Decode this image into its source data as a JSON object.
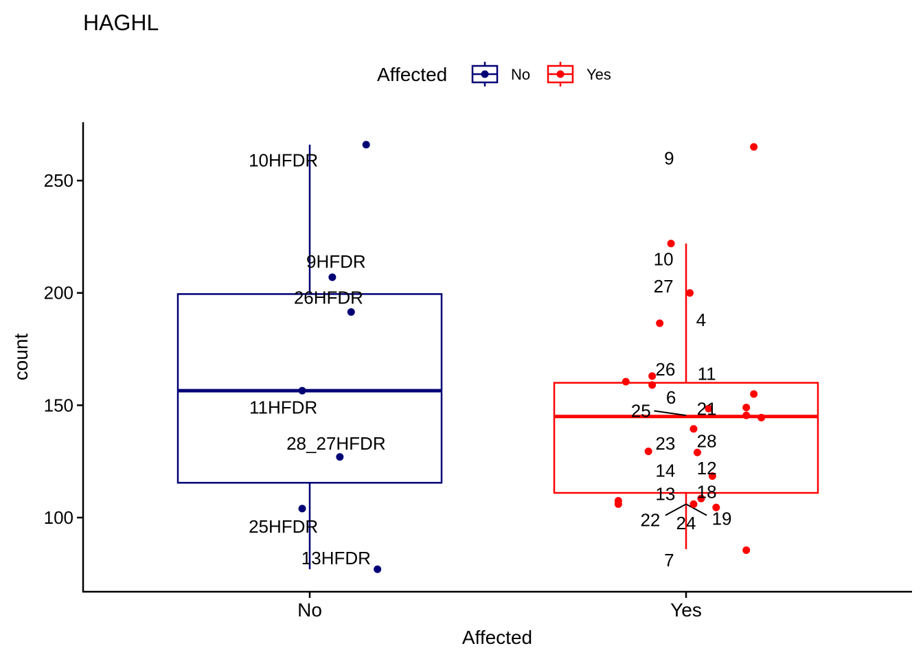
{
  "chart_data": {
    "type": "box",
    "title": "HAGHL",
    "xlabel": "Affected",
    "ylabel": "count",
    "categories": [
      "No",
      "Yes"
    ],
    "ylim": [
      67,
      276
    ],
    "yticks": [
      100,
      150,
      200,
      250
    ],
    "legend": {
      "title": "Affected",
      "position": "top",
      "entries": [
        {
          "name": "No",
          "color": "#000075"
        },
        {
          "name": "Yes",
          "color": "#ff0000"
        }
      ]
    },
    "boxes": [
      {
        "category": "No",
        "color": "#000075",
        "whisker_low": 77,
        "q1": 115.5,
        "median": 156.5,
        "q3": 199.5,
        "whisker_high": 266
      },
      {
        "category": "Yes",
        "color": "#ff0000",
        "whisker_low": 86,
        "q1": 111,
        "median": 145,
        "q3": 160,
        "whisker_high": 222
      }
    ],
    "points": [
      {
        "category": "No",
        "y": 266,
        "jitter": 0.15
      },
      {
        "category": "No",
        "y": 207,
        "jitter": 0.06
      },
      {
        "category": "No",
        "y": 191.5,
        "jitter": 0.11
      },
      {
        "category": "No",
        "y": 156.5,
        "jitter": -0.02
      },
      {
        "category": "No",
        "y": 127,
        "jitter": 0.08
      },
      {
        "category": "No",
        "y": 104,
        "jitter": -0.02
      },
      {
        "category": "No",
        "y": 77,
        "jitter": 0.18
      },
      {
        "category": "Yes",
        "y": 265,
        "jitter": 0.18
      },
      {
        "category": "Yes",
        "y": 222,
        "jitter": -0.04
      },
      {
        "category": "Yes",
        "y": 200,
        "jitter": 0.01
      },
      {
        "category": "Yes",
        "y": 186.5,
        "jitter": -0.07
      },
      {
        "category": "Yes",
        "y": 163,
        "jitter": -0.09
      },
      {
        "category": "Yes",
        "y": 160.5,
        "jitter": -0.16
      },
      {
        "category": "Yes",
        "y": 159,
        "jitter": -0.09
      },
      {
        "category": "Yes",
        "y": 155,
        "jitter": 0.18
      },
      {
        "category": "Yes",
        "y": 149,
        "jitter": 0.16
      },
      {
        "category": "Yes",
        "y": 148.5,
        "jitter": 0.06
      },
      {
        "category": "Yes",
        "y": 145.5,
        "jitter": 0.16
      },
      {
        "category": "Yes",
        "y": 144.5,
        "jitter": 0.2
      },
      {
        "category": "Yes",
        "y": 139.5,
        "jitter": 0.02
      },
      {
        "category": "Yes",
        "y": 129.5,
        "jitter": -0.1
      },
      {
        "category": "Yes",
        "y": 129,
        "jitter": 0.03
      },
      {
        "category": "Yes",
        "y": 118.5,
        "jitter": 0.07
      },
      {
        "category": "Yes",
        "y": 108.5,
        "jitter": 0.04
      },
      {
        "category": "Yes",
        "y": 107.5,
        "jitter": -0.18
      },
      {
        "category": "Yes",
        "y": 106,
        "jitter": -0.18
      },
      {
        "category": "Yes",
        "y": 106,
        "jitter": 0.02
      },
      {
        "category": "Yes",
        "y": 104.5,
        "jitter": 0.08
      },
      {
        "category": "Yes",
        "y": 85.5,
        "jitter": 0.16
      }
    ],
    "labels": [
      {
        "text": "10HFDR",
        "category": "No",
        "y": 259,
        "dx": -0.07
      },
      {
        "text": "9HFDR",
        "category": "No",
        "y": 214,
        "dx": 0.07
      },
      {
        "text": "26HFDR",
        "category": "No",
        "y": 198,
        "dx": 0.05
      },
      {
        "text": "11HFDR",
        "category": "No",
        "y": 149,
        "dx": -0.07
      },
      {
        "text": "28_27HFDR",
        "category": "No",
        "y": 133,
        "dx": 0.07
      },
      {
        "text": "25HFDR",
        "category": "No",
        "y": 96,
        "dx": -0.07
      },
      {
        "text": "13HFDR",
        "category": "No",
        "y": 82,
        "dx": 0.07
      },
      {
        "text": "9",
        "category": "Yes",
        "y": 260,
        "dx": -0.045
      },
      {
        "text": "10",
        "category": "Yes",
        "y": 215,
        "dx": -0.06
      },
      {
        "text": "27",
        "category": "Yes",
        "y": 203,
        "dx": -0.06
      },
      {
        "text": "4",
        "category": "Yes",
        "y": 188,
        "dx": 0.04
      },
      {
        "text": "26",
        "category": "Yes",
        "y": 166,
        "dx": -0.055
      },
      {
        "text": "11",
        "category": "Yes",
        "y": 164,
        "dx": 0.055
      },
      {
        "text": "6",
        "category": "Yes",
        "y": 153.5,
        "dx": -0.04
      },
      {
        "text": "25",
        "category": "Yes",
        "y": 147.5,
        "dx": -0.12
      },
      {
        "text": "21",
        "category": "Yes",
        "y": 148.5,
        "dx": 0.055
      },
      {
        "text": "23",
        "category": "Yes",
        "y": 133,
        "dx": -0.055
      },
      {
        "text": "28",
        "category": "Yes",
        "y": 134,
        "dx": 0.055
      },
      {
        "text": "14",
        "category": "Yes",
        "y": 121,
        "dx": -0.055
      },
      {
        "text": "12",
        "category": "Yes",
        "y": 122,
        "dx": 0.055
      },
      {
        "text": "13",
        "category": "Yes",
        "y": 110.5,
        "dx": -0.055
      },
      {
        "text": "18",
        "category": "Yes",
        "y": 111.5,
        "dx": 0.055
      },
      {
        "text": "22",
        "category": "Yes",
        "y": 99,
        "dx": -0.095
      },
      {
        "text": "24",
        "category": "Yes",
        "y": 97.5,
        "dx": 0
      },
      {
        "text": "19",
        "category": "Yes",
        "y": 99.5,
        "dx": 0.095
      },
      {
        "text": "7",
        "category": "Yes",
        "y": 81,
        "dx": -0.045
      }
    ],
    "leader_lines": [
      {
        "category": "Yes",
        "from": [
          -0.085,
          147.5
        ],
        "to": [
          0,
          145.5
        ]
      },
      {
        "category": "Yes",
        "from": [
          -0.055,
          101
        ],
        "to": [
          0,
          106
        ]
      },
      {
        "category": "Yes",
        "from": [
          0,
          106
        ],
        "to": [
          0.055,
          101
        ]
      }
    ]
  }
}
